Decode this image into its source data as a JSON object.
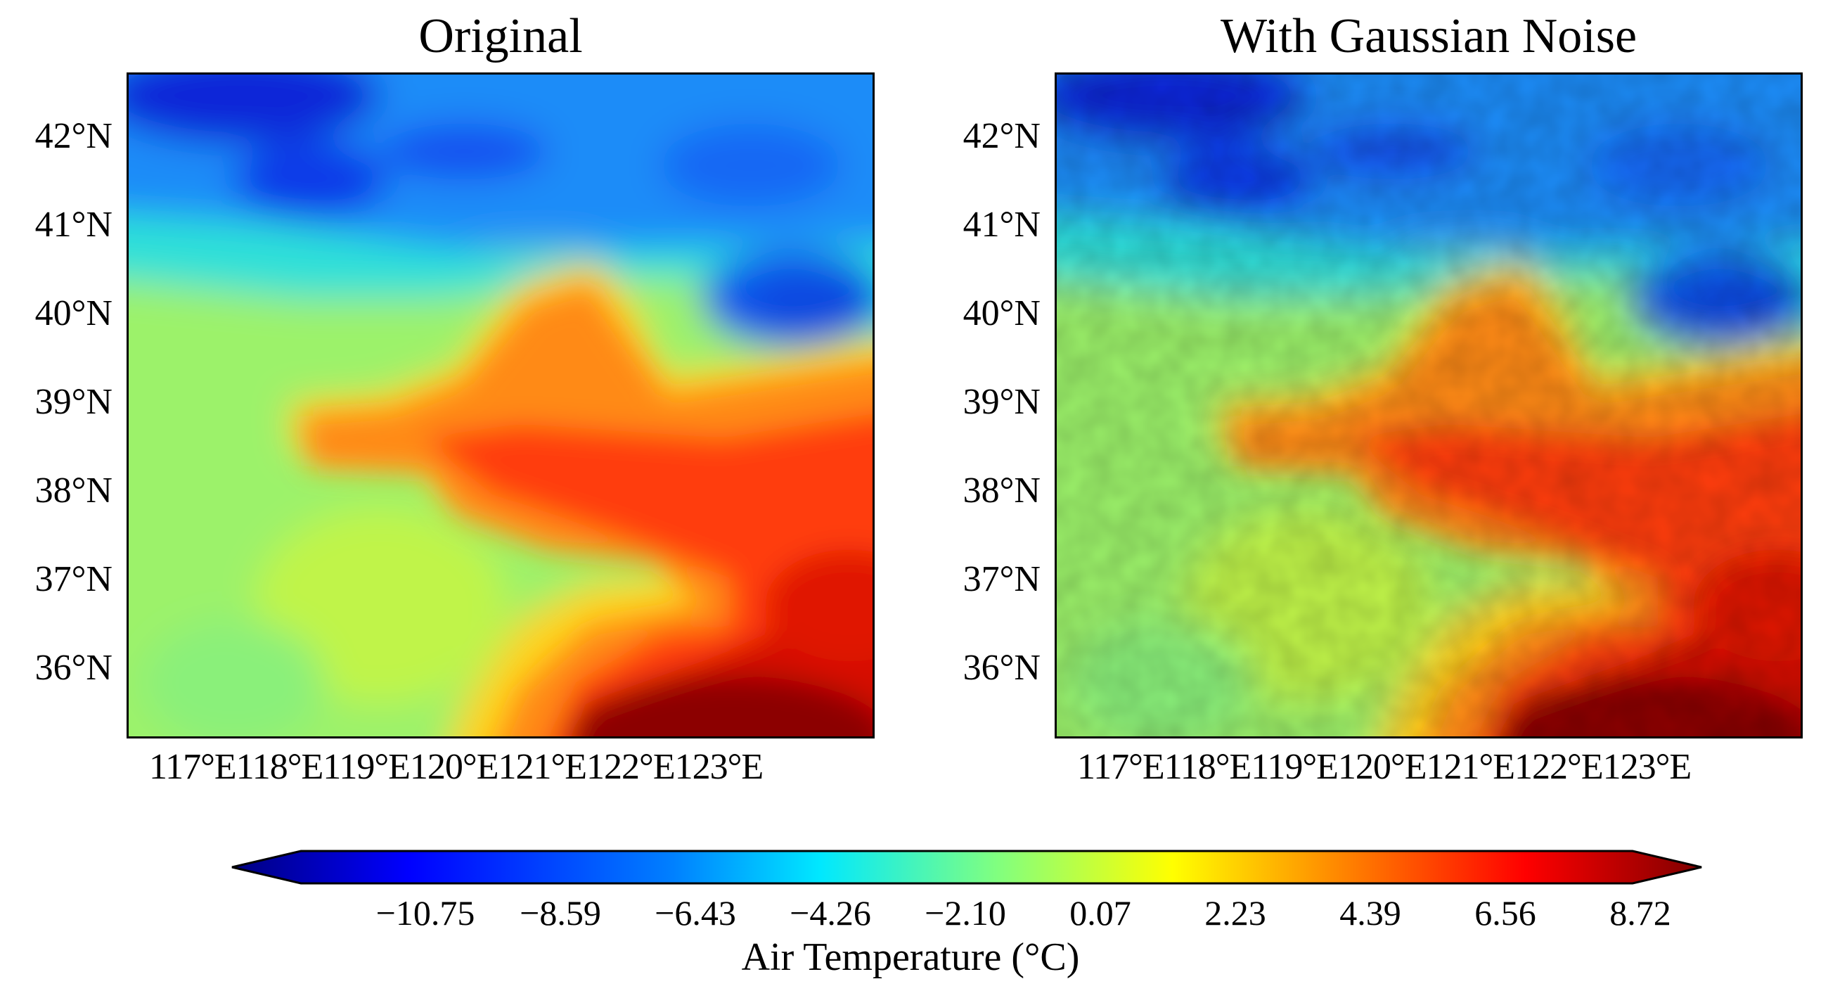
{
  "panels": [
    {
      "title": "Original"
    },
    {
      "title": "With Gaussian Noise"
    }
  ],
  "latitude_labels": [
    "42°N",
    "41°N",
    "40°N",
    "39°N",
    "38°N",
    "37°N",
    "36°N"
  ],
  "longitude_labels": [
    "117°E",
    "118°E",
    "119°E",
    "120°E",
    "121°E",
    "122°E",
    "123°E"
  ],
  "colorbar": {
    "label": "Air Temperature (°C)",
    "ticks": [
      "−10.75",
      "−8.59",
      "−6.43",
      "−4.26",
      "−2.10",
      "0.07",
      "2.23",
      "4.39",
      "6.56",
      "8.72"
    ],
    "colormap": "jet",
    "colors": [
      "#00007f",
      "#0000ff",
      "#0080ff",
      "#00ffff",
      "#80ff80",
      "#ffff00",
      "#ff8000",
      "#ff0000",
      "#7f0000"
    ]
  }
}
